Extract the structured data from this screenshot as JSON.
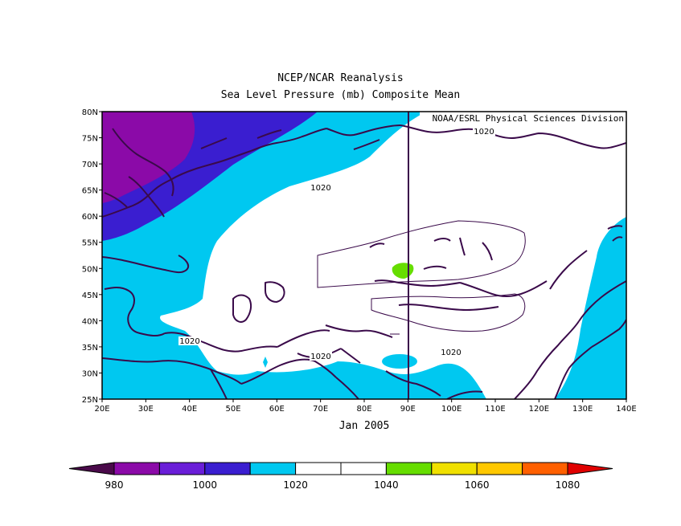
{
  "title": "NCEP/NCAR Reanalysis",
  "subtitle": "Sea Level Pressure (mb) Composite Mean",
  "credit": "NOAA/ESRL Physical Sciences Division",
  "period_label": "Jan 2005",
  "map": {
    "lon_range": [
      20,
      140
    ],
    "lat_range": [
      25,
      80
    ],
    "lon_ticks": [
      "20E",
      "30E",
      "40E",
      "50E",
      "60E",
      "70E",
      "80E",
      "90E",
      "100E",
      "110E",
      "120E",
      "130E",
      "140E"
    ],
    "lat_ticks": [
      "25N",
      "30N",
      "35N",
      "40N",
      "45N",
      "50N",
      "55N",
      "60N",
      "65N",
      "70N",
      "75N",
      "80N"
    ],
    "contour_labels": [
      "1020",
      "1020",
      "1020",
      "1020",
      "1020"
    ],
    "reference_line_lon": 90
  },
  "colorbar": {
    "labels": [
      "980",
      "1000",
      "1020",
      "1040",
      "1060",
      "1080"
    ],
    "colors": [
      "#4a0a4a",
      "#8b0aa8",
      "#6a1ed8",
      "#3a1ed0",
      "#00c8f0",
      "#ffffff",
      "#ffffff",
      "#66dd00",
      "#f0e000",
      "#ffc800",
      "#ff6000",
      "#e00000"
    ]
  },
  "colors": {
    "c1000": "#8b0aa8",
    "c1010": "#3a1ed0",
    "c1020": "#00c8f0",
    "c1030": "#ffffff",
    "c1040": "#66dd00",
    "coast": "#3a0a4a"
  }
}
